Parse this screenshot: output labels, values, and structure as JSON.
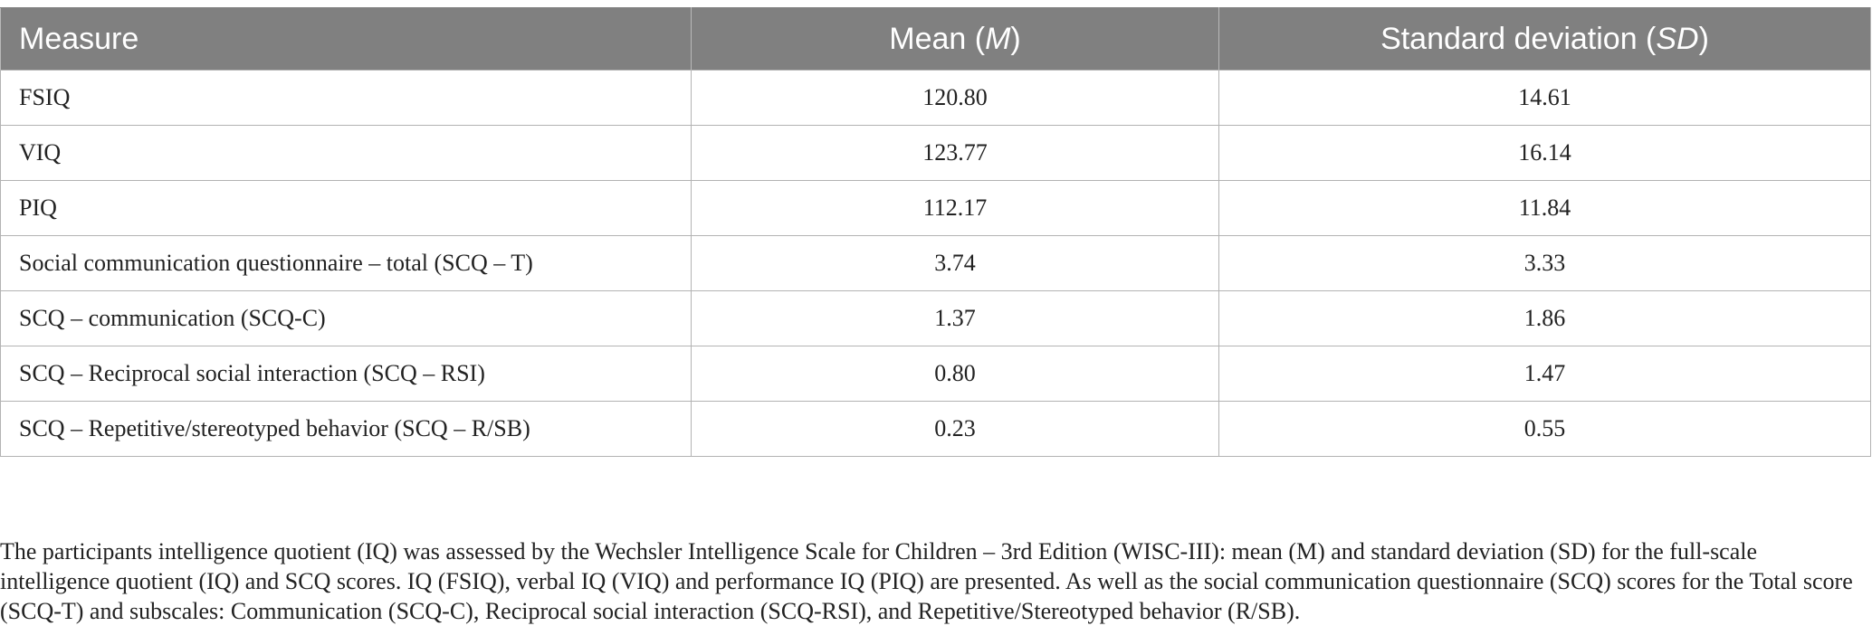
{
  "table": {
    "headers": {
      "measure": "Measure",
      "mean_prefix": "Mean (",
      "mean_symbol": "M",
      "mean_suffix": ")",
      "sd_prefix": "Standard deviation (",
      "sd_symbol": "SD",
      "sd_suffix": ")"
    },
    "rows": [
      {
        "measure": "FSIQ",
        "mean": "120.80",
        "sd": "14.61"
      },
      {
        "measure": "VIQ",
        "mean": "123.77",
        "sd": "16.14"
      },
      {
        "measure": "PIQ",
        "mean": "112.17",
        "sd": "11.84"
      },
      {
        "measure": "Social communication questionnaire – total (SCQ – T)",
        "mean": "3.74",
        "sd": "3.33"
      },
      {
        "measure": "SCQ – communication (SCQ-C)",
        "mean": "1.37",
        "sd": "1.86"
      },
      {
        "measure": "SCQ – Reciprocal social interaction (SCQ – RSI)",
        "mean": "0.80",
        "sd": "1.47"
      },
      {
        "measure": "SCQ – Repetitive/stereotyped behavior (SCQ – R/SB)",
        "mean": "0.23",
        "sd": "0.55"
      }
    ]
  },
  "footnote": "The participants intelligence quotient (IQ) was assessed by the Wechsler Intelligence Scale for Children – 3rd Edition (WISC-III): mean (M) and standard deviation (SD) for the full-scale intelligence quotient (IQ) and SCQ scores. IQ (FSIQ), verbal IQ (VIQ) and performance IQ (PIQ) are presented. As well as the social communication questionnaire (SCQ) scores for the Total score (SCQ-T) and subscales: Communication (SCQ-C), Reciprocal social interaction (SCQ-RSI), and Repetitive/Stereotyped behavior (R/SB)."
}
